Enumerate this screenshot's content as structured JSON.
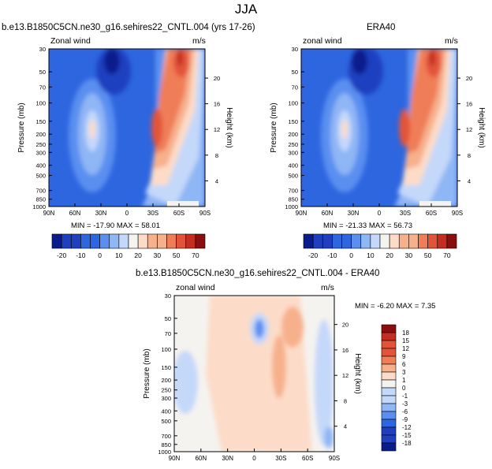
{
  "page_title": "JJA",
  "colors": {
    "blue6": "#0a1c8c",
    "blue5": "#1f3fbf",
    "blue4": "#2e66e0",
    "blue3": "#5a8ff0",
    "blue2": "#8fb6f5",
    "blue1": "#c4d8fa",
    "white": "#f5f3f0",
    "red1": "#fcdcc8",
    "red2": "#f7b08c",
    "red3": "#ef7e58",
    "red4": "#e2543a",
    "red5": "#c42d20",
    "red6": "#8b0d0d"
  },
  "chart_data": [
    {
      "type": "heatmap",
      "title": "b.e13.B1850C5CN.ne30_g16.sehires22_CNTL.004 (yrs 17-26)",
      "left_label": "Zonal wind",
      "right_label": "m/s",
      "xlabel": "",
      "ylabel": "Pressure (mb)",
      "ylabel_right": "Height (km)",
      "x_ticks": [
        "90N",
        "60N",
        "30N",
        "0",
        "30S",
        "60S",
        "90S"
      ],
      "y_ticks": [
        "30",
        "50",
        "70",
        "100",
        "150",
        "200",
        "250",
        "300",
        "400",
        "500",
        "700",
        "850",
        "1000"
      ],
      "height_ticks": [
        "20",
        "16",
        "12",
        "8",
        "4"
      ],
      "stats": "MIN = -17.90   MAX = 58.01",
      "colorbar_labels": [
        "-20",
        "-10",
        "0",
        "10",
        "20",
        "30",
        "50",
        "70"
      ]
    },
    {
      "type": "heatmap",
      "title": "ERA40",
      "left_label": "zonal wind",
      "right_label": "m/s",
      "xlabel": "",
      "ylabel": "Pressure (mb)",
      "ylabel_right": "Height (km)",
      "x_ticks": [
        "90N",
        "60N",
        "30N",
        "0",
        "30S",
        "60S",
        "90S"
      ],
      "y_ticks": [
        "30",
        "50",
        "70",
        "100",
        "150",
        "200",
        "250",
        "300",
        "400",
        "500",
        "700",
        "850",
        "1000"
      ],
      "height_ticks": [
        "20",
        "16",
        "12",
        "8",
        "4"
      ],
      "stats": "MIN = -21.33   MAX = 56.73",
      "colorbar_labels": [
        "-20",
        "-10",
        "0",
        "10",
        "20",
        "30",
        "50",
        "70"
      ]
    },
    {
      "type": "heatmap",
      "title": "b.e13.B1850C5CN.ne30_g16.sehires22_CNTL.004 - ERA40",
      "left_label": "zonal wind",
      "right_label": "m/s",
      "xlabel": "",
      "ylabel": "Pressure (mb)",
      "ylabel_right": "Height (km)",
      "x_ticks": [
        "90N",
        "60N",
        "30N",
        "0",
        "30S",
        "60S",
        "90S"
      ],
      "y_ticks": [
        "30",
        "50",
        "70",
        "100",
        "150",
        "200",
        "250",
        "300",
        "400",
        "500",
        "700",
        "850",
        "1000"
      ],
      "height_ticks": [
        "20",
        "16",
        "12",
        "8",
        "4"
      ],
      "stats": "MIN = -6.20   MAX =  7.35",
      "colorbar_labels": [
        "18",
        "15",
        "12",
        "9",
        "6",
        "3",
        "1",
        "0",
        "-1",
        "-3",
        "-6",
        "-9",
        "-12",
        "-15",
        "-18"
      ]
    }
  ]
}
